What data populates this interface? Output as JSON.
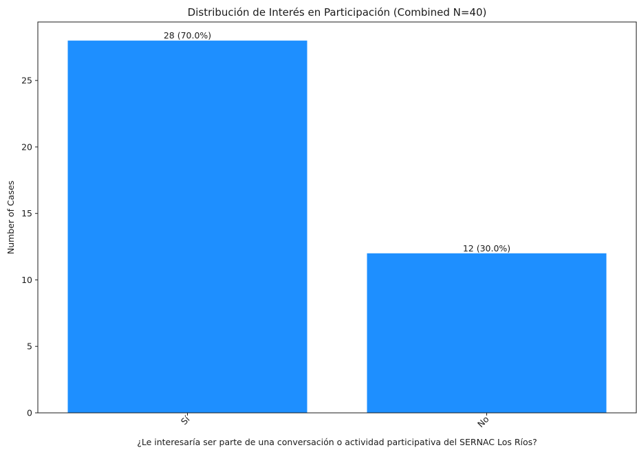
{
  "chart_data": {
    "type": "bar",
    "title": "Distribución de Interés en Participación (Combined N=40)",
    "xlabel": "¿Le interesaría ser parte de una conversación o actividad participativa del SERNAC Los Ríos?",
    "ylabel": "Number of Cases",
    "categories": [
      "Sí",
      "No"
    ],
    "values": [
      28,
      12
    ],
    "data_labels": [
      "28 (70.0%)",
      "12 (30.0%)"
    ],
    "ylim": [
      0,
      29.4
    ],
    "yticks": [
      0,
      5,
      10,
      15,
      20,
      25
    ],
    "bar_color": "#1e8fff",
    "grid": false
  }
}
